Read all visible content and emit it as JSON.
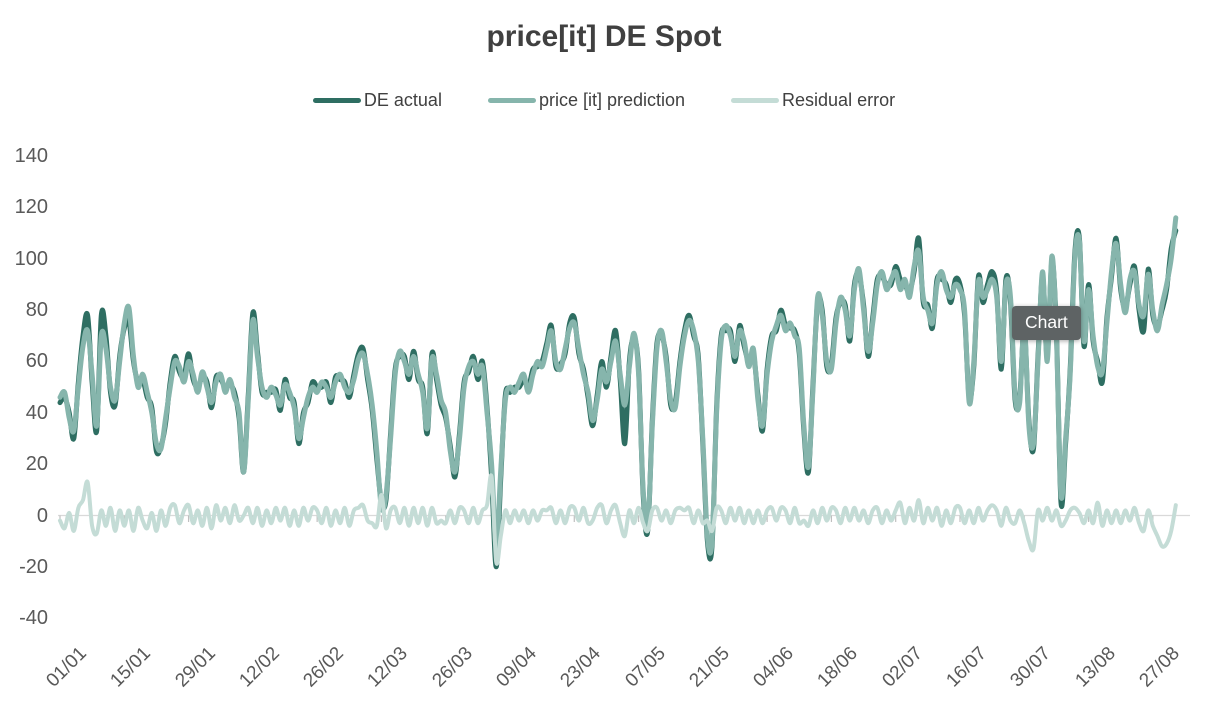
{
  "title": "price[it] DE Spot",
  "tooltip": {
    "label": "Chart"
  },
  "colors": {
    "actual": "#2e6e62",
    "prediction": "#86b5ac",
    "residual": "#c4dcd6",
    "title_text": "#404040",
    "axis_text": "#595959",
    "zero_line": "#d9d9d9",
    "axis_tick": "#bfbfbf",
    "tooltip_bg": "#5e6364",
    "tooltip_text": "#ffffff"
  },
  "chart_data": {
    "type": "line",
    "title": "price[it] DE Spot",
    "xlabel": "",
    "ylabel": "",
    "x_unit": "day",
    "x_start": "01/01",
    "x_end": "01/09",
    "ylim": [
      -40,
      140
    ],
    "y_ticks": [
      140,
      120,
      100,
      80,
      60,
      40,
      20,
      0,
      -20,
      -40
    ],
    "x_ticks": [
      {
        "label": "01/01",
        "day": 0
      },
      {
        "label": "15/01",
        "day": 14
      },
      {
        "label": "29/01",
        "day": 28
      },
      {
        "label": "12/02",
        "day": 42
      },
      {
        "label": "26/02",
        "day": 56
      },
      {
        "label": "12/03",
        "day": 70
      },
      {
        "label": "26/03",
        "day": 84
      },
      {
        "label": "09/04",
        "day": 98
      },
      {
        "label": "23/04",
        "day": 112
      },
      {
        "label": "07/05",
        "day": 126
      },
      {
        "label": "21/05",
        "day": 140
      },
      {
        "label": "04/06",
        "day": 154
      },
      {
        "label": "18/06",
        "day": 168
      },
      {
        "label": "02/07",
        "day": 182
      },
      {
        "label": "16/07",
        "day": 196
      },
      {
        "label": "30/07",
        "day": 210
      },
      {
        "label": "13/08",
        "day": 224
      },
      {
        "label": "27/08",
        "day": 238
      }
    ],
    "grid": false,
    "legend_position": "top",
    "series": [
      {
        "name": "DE actual",
        "color": "#2e6e62",
        "width": 5,
        "values": [
          44,
          46,
          40,
          30,
          52,
          70,
          78,
          52,
          33,
          78,
          70,
          48,
          43,
          62,
          73,
          76,
          60,
          52,
          53,
          46,
          42,
          25,
          27,
          36,
          52,
          62,
          56,
          54,
          63,
          53,
          50,
          54,
          52,
          42,
          54,
          53,
          50,
          51,
          48,
          38,
          17,
          47,
          79,
          64,
          48,
          48,
          48,
          49,
          41,
          53,
          46,
          44,
          28,
          40,
          44,
          52,
          50,
          50,
          52,
          44,
          54,
          53,
          52,
          46,
          55,
          63,
          65,
          53,
          41,
          22,
          5,
          6,
          32,
          57,
          62,
          62,
          53,
          64,
          53,
          50,
          32,
          63,
          53,
          43,
          38,
          27,
          15,
          32,
          52,
          56,
          62,
          53,
          60,
          42,
          15,
          -20,
          15,
          47,
          48,
          50,
          50,
          53,
          50,
          57,
          58,
          60,
          67,
          74,
          58,
          59,
          63,
          75,
          77,
          63,
          57,
          46,
          35,
          47,
          60,
          50,
          62,
          72,
          53,
          28,
          60,
          69,
          57,
          8,
          -6,
          37,
          67,
          70,
          62,
          43,
          44,
          60,
          72,
          78,
          70,
          62,
          28,
          -10,
          -12,
          42,
          70,
          72,
          72,
          60,
          74,
          66,
          60,
          63,
          47,
          33,
          57,
          70,
          72,
          80,
          74,
          73,
          72,
          63,
          33,
          17,
          52,
          83,
          80,
          58,
          59,
          77,
          83,
          82,
          68,
          90,
          94,
          82,
          62,
          77,
          92,
          93,
          90,
          90,
          97,
          92,
          90,
          87,
          95,
          108,
          83,
          82,
          73,
          92,
          92,
          90,
          83,
          92,
          90,
          78,
          46,
          58,
          93,
          83,
          90,
          95,
          87,
          57,
          92,
          83,
          45,
          46,
          73,
          37,
          26,
          62,
          93,
          62,
          99,
          72,
          5,
          28,
          57,
          102,
          108,
          66,
          90,
          68,
          60,
          52,
          77,
          93,
          108,
          88,
          81,
          90,
          97,
          80,
          72,
          96,
          78,
          74,
          80,
          88,
          104,
          111
        ]
      },
      {
        "name": "price [it] prediction",
        "color": "#86b5ac",
        "width": 5,
        "values": [
          46,
          48,
          38,
          33,
          50,
          66,
          72,
          55,
          35,
          70,
          65,
          50,
          45,
          60,
          75,
          81,
          62,
          50,
          55,
          48,
          40,
          28,
          26,
          38,
          50,
          60,
          58,
          52,
          60,
          55,
          48,
          56,
          50,
          44,
          52,
          55,
          48,
          53,
          46,
          40,
          17,
          45,
          76,
          62,
          50,
          46,
          50,
          47,
          43,
          51,
          48,
          42,
          30,
          38,
          46,
          50,
          48,
          52,
          50,
          46,
          52,
          55,
          50,
          48,
          53,
          61,
          63,
          55,
          43,
          25,
          3,
          8,
          30,
          55,
          64,
          60,
          55,
          62,
          55,
          48,
          34,
          61,
          55,
          45,
          40,
          25,
          17,
          30,
          50,
          58,
          60,
          55,
          58,
          40,
          20,
          -12,
          18,
          45,
          50,
          48,
          52,
          55,
          48,
          55,
          60,
          58,
          65,
          72,
          60,
          57,
          65,
          73,
          75,
          65,
          55,
          48,
          37,
          45,
          57,
          52,
          60,
          68,
          55,
          43,
          58,
          71,
          55,
          10,
          -4,
          35,
          65,
          72,
          60,
          45,
          42,
          58,
          70,
          76,
          72,
          60,
          30,
          -8,
          -10,
          40,
          68,
          74,
          70,
          62,
          72,
          68,
          58,
          65,
          45,
          35,
          55,
          68,
          74,
          78,
          72,
          75,
          70,
          65,
          35,
          19,
          50,
          85,
          78,
          60,
          57,
          75,
          85,
          80,
          70,
          88,
          96,
          80,
          64,
          75,
          90,
          95,
          88,
          92,
          95,
          88,
          92,
          85,
          97,
          103,
          85,
          80,
          75,
          90,
          95,
          88,
          85,
          90,
          88,
          80,
          44,
          60,
          91,
          85,
          88,
          92,
          85,
          60,
          90,
          85,
          47,
          44,
          75,
          35,
          28,
          60,
          95,
          60,
          101,
          70,
          8,
          30,
          55,
          100,
          107,
          68,
          88,
          70,
          58,
          56,
          75,
          95,
          106,
          90,
          79,
          92,
          95,
          82,
          78,
          94,
          80,
          72,
          82,
          90,
          100,
          116
        ]
      },
      {
        "name": "Residual error",
        "color": "#c4dcd6",
        "width": 4,
        "values": [
          -2,
          -5,
          1,
          -6,
          3,
          6,
          13,
          -4,
          -7,
          2,
          -4,
          3,
          -6,
          2,
          -4,
          2,
          -6,
          3,
          -2,
          -5,
          1,
          -6,
          2,
          -4,
          3,
          4,
          -3,
          2,
          4,
          -3,
          2,
          -4,
          3,
          -5,
          4,
          -2,
          3,
          -3,
          4,
          -2,
          0,
          3,
          -3,
          3,
          -4,
          2,
          -3,
          3,
          -2,
          3,
          -4,
          2,
          -4,
          3,
          -2,
          3,
          2,
          -3,
          3,
          -4,
          2,
          -3,
          3,
          -4,
          2,
          3,
          4,
          -2,
          -3,
          -4,
          8,
          -5,
          2,
          3,
          -3,
          3,
          -4,
          3,
          -3,
          3,
          -4,
          3,
          -3,
          -2,
          -3,
          2,
          -3,
          3,
          2,
          -3,
          3,
          -3,
          2,
          4,
          15,
          -18,
          -8,
          2,
          -3,
          2,
          -2,
          2,
          -3,
          2,
          -2,
          2,
          2,
          3,
          -3,
          2,
          -3,
          3,
          3,
          -2,
          3,
          -3,
          -2,
          3,
          4,
          -3,
          2,
          4,
          -3,
          -8,
          2,
          -3,
          3,
          -3,
          -6,
          2,
          3,
          -2,
          2,
          -3,
          2,
          3,
          2,
          3,
          -3,
          2,
          -3,
          -2,
          -6,
          3,
          2,
          -3,
          3,
          -2,
          3,
          -3,
          2,
          -3,
          2,
          -3,
          2,
          3,
          -2,
          3,
          2,
          -3,
          3,
          -3,
          -2,
          -4,
          2,
          -3,
          3,
          -2,
          3,
          2,
          -3,
          3,
          -2,
          3,
          -2,
          2,
          -3,
          2,
          3,
          -3,
          2,
          -2,
          2,
          5,
          -3,
          3,
          -2,
          6,
          -3,
          3,
          -2,
          3,
          -4,
          2,
          -3,
          3,
          3,
          -3,
          2,
          -3,
          3,
          -2,
          2,
          4,
          2,
          -4,
          3,
          -2,
          -3,
          2,
          -3,
          -10,
          -13,
          2,
          -2,
          3,
          -2,
          2,
          -4,
          -2,
          2,
          3,
          1,
          -3,
          2,
          -3,
          5,
          -4,
          2,
          -3,
          2,
          -3,
          2,
          -2,
          3,
          -3,
          -6,
          2,
          -4,
          -8,
          -12,
          -11,
          -6,
          4
        ]
      }
    ]
  }
}
